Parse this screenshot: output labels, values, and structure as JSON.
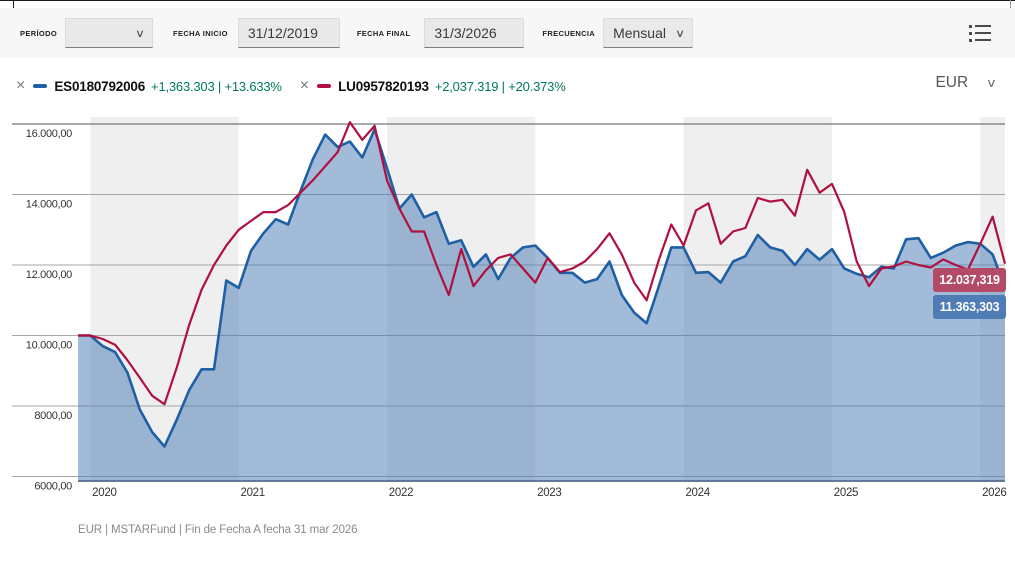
{
  "toolbar": {
    "periodo_label": "PERÍODO",
    "periodo_value": "",
    "fecha_inicio_label": "FECHA INICIO",
    "fecha_inicio_value": "31/12/2019",
    "fecha_final_label": "FECHA FINAL",
    "fecha_final_value": "31/3/2026",
    "frecuencia_label": "FRECUENCIA",
    "frecuencia_value": "Mensual",
    "chevron": "∨"
  },
  "legend": {
    "close_icon": "×",
    "currency": "EUR",
    "series": [
      {
        "id": "ES0180792006",
        "perf": "+1,363.303 | +13.633%"
      },
      {
        "id": "LU0957820193",
        "perf": "+2,037.319 | +20.373%"
      }
    ]
  },
  "chart_data": {
    "type": "line",
    "title": "",
    "x_unit": "month",
    "x_start": "2019-12",
    "x_end": "2026-03",
    "xticks": [
      "2020",
      "2021",
      "2022",
      "2023",
      "2024",
      "2025",
      "2026"
    ],
    "band_years": [
      "2020",
      "2022",
      "2024",
      "2026"
    ],
    "band_color": "#efefef",
    "grid_color": "#a6a6a6",
    "ylim": [
      5850,
      16200
    ],
    "yticks": [
      {
        "v": 16000,
        "label": "16.000,00"
      },
      {
        "v": 14000,
        "label": "14.000,00"
      },
      {
        "v": 12000,
        "label": "12.000,00"
      },
      {
        "v": 10000,
        "label": "10.000,00"
      },
      {
        "v": 8000,
        "label": "8000,00"
      },
      {
        "v": 6000,
        "label": "6000,00"
      }
    ],
    "series": [
      {
        "name": "ES0180792006",
        "color": "#1e5fa5",
        "fill": "rgba(70,120,180,0.5)",
        "end_label": "11.363,303",
        "end_label_bg": "#4f7cb5",
        "values": [
          10000,
          10000,
          9700,
          9530,
          8950,
          7900,
          7260,
          6850,
          7620,
          8450,
          9040,
          9040,
          11560,
          11350,
          12400,
          12900,
          13300,
          13150,
          14100,
          15000,
          15700,
          15350,
          15500,
          15050,
          15850,
          14750,
          13600,
          14000,
          13350,
          13500,
          12600,
          12700,
          11950,
          12300,
          11600,
          12200,
          12500,
          12550,
          12200,
          11780,
          11780,
          11500,
          11600,
          12100,
          11150,
          10650,
          10350,
          11400,
          12500,
          12500,
          11780,
          11800,
          11500,
          12100,
          12250,
          12850,
          12500,
          12400,
          12000,
          12450,
          12150,
          12450,
          11900,
          11750,
          11650,
          11950,
          11900,
          12730,
          12760,
          12200,
          12350,
          12550,
          12650,
          12600,
          12300,
          11363.303
        ]
      },
      {
        "name": "LU0957820193",
        "color": "#b01040",
        "fill": null,
        "end_label": "12.037,319",
        "end_label_bg": "#b34a68",
        "values": [
          10000,
          10000,
          9900,
          9740,
          9300,
          8800,
          8290,
          8050,
          9100,
          10300,
          11300,
          12000,
          12550,
          13000,
          13250,
          13500,
          13500,
          13700,
          14050,
          14400,
          14800,
          15200,
          16050,
          15550,
          15950,
          14400,
          13600,
          12950,
          12950,
          12000,
          11150,
          12450,
          11400,
          11850,
          12200,
          12300,
          11900,
          11500,
          12200,
          11800,
          11900,
          12100,
          12450,
          12900,
          12300,
          11500,
          11000,
          12150,
          13150,
          12550,
          13550,
          13750,
          12600,
          12950,
          13050,
          13900,
          13800,
          13850,
          13400,
          14700,
          14050,
          14300,
          13500,
          12100,
          11400,
          11900,
          11960,
          12100,
          12000,
          11930,
          12160,
          12000,
          11870,
          12600,
          13370,
          12037.319
        ]
      }
    ]
  },
  "footer": {
    "source": "EUR | MSTARFund | Fin de Fecha A fecha 31 mar 2026"
  }
}
